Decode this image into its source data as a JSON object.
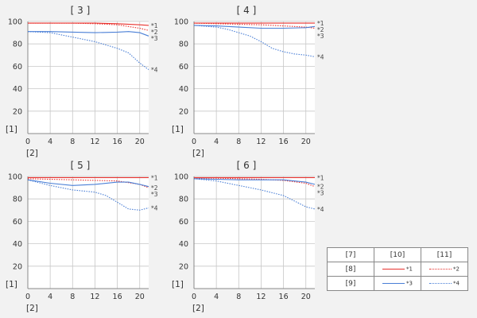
{
  "chart_data": [
    {
      "type": "line",
      "title": "[ 3 ]",
      "ylabel": "[1]",
      "xlabel": "[2]",
      "xlim": [
        0,
        21.6
      ],
      "ylim": [
        0,
        100
      ],
      "xticks": [
        0,
        4,
        8,
        12,
        16,
        20
      ],
      "yticks": [
        20,
        40,
        60,
        80,
        100
      ],
      "series": [
        {
          "name": "*1",
          "style": "solid",
          "color": "#e8322e",
          "x": [
            0,
            4,
            8,
            12,
            16,
            20,
            21.6
          ],
          "y": [
            98.5,
            98.5,
            98.5,
            98.5,
            98,
            97,
            96.5
          ]
        },
        {
          "name": "*2",
          "style": "dotted",
          "color": "#e8322e",
          "x": [
            0,
            4,
            8,
            12,
            16,
            20,
            21.6
          ],
          "y": [
            98.5,
            98.5,
            98.5,
            98,
            97,
            94,
            92
          ]
        },
        {
          "name": "*3",
          "style": "solid",
          "color": "#4a7fd6",
          "x": [
            0,
            4,
            8,
            12,
            16,
            18,
            20,
            21.6
          ],
          "y": [
            91,
            91,
            90.5,
            90,
            90.5,
            91,
            90,
            87
          ]
        },
        {
          "name": "*4",
          "style": "dotted",
          "color": "#4a7fd6",
          "x": [
            0,
            4,
            8,
            12,
            16,
            18,
            20,
            21.6
          ],
          "y": [
            91,
            90,
            86,
            82,
            76,
            72,
            63,
            57
          ]
        }
      ]
    },
    {
      "type": "line",
      "title": "[ 4 ]",
      "ylabel": "[1]",
      "xlabel": "[2]",
      "xlim": [
        0,
        21.6
      ],
      "ylim": [
        0,
        100
      ],
      "xticks": [
        0,
        4,
        8,
        12,
        16,
        20
      ],
      "yticks": [
        20,
        40,
        60,
        80,
        100
      ],
      "series": [
        {
          "name": "*1",
          "style": "solid",
          "color": "#e8322e",
          "x": [
            0,
            4,
            8,
            12,
            16,
            20,
            21.6
          ],
          "y": [
            98.5,
            98.5,
            98.5,
            98.5,
            98.5,
            98.5,
            98.5
          ]
        },
        {
          "name": "*2",
          "style": "dotted",
          "color": "#e8322e",
          "x": [
            0,
            4,
            8,
            12,
            16,
            20,
            21.6
          ],
          "y": [
            98.5,
            98,
            97.5,
            97,
            96,
            95,
            94
          ]
        },
        {
          "name": "*3",
          "style": "solid",
          "color": "#4a7fd6",
          "x": [
            0,
            4,
            8,
            12,
            16,
            20,
            21.6
          ],
          "y": [
            96.5,
            96,
            95,
            94,
            94,
            94.5,
            95.5
          ]
        },
        {
          "name": "*4",
          "style": "dotted",
          "color": "#4a7fd6",
          "x": [
            0,
            4,
            6,
            8,
            10,
            12,
            14,
            16,
            18,
            20,
            21.6
          ],
          "y": [
            96.5,
            95,
            93,
            90,
            87,
            82,
            76,
            73,
            71,
            70,
            68.5
          ]
        }
      ]
    },
    {
      "type": "line",
      "title": "[ 5 ]",
      "ylabel": "[1]",
      "xlabel": "[2]",
      "xlim": [
        0,
        21.6
      ],
      "ylim": [
        0,
        100
      ],
      "xticks": [
        0,
        4,
        8,
        12,
        16,
        20
      ],
      "yticks": [
        20,
        40,
        60,
        80,
        100
      ],
      "series": [
        {
          "name": "*1",
          "style": "solid",
          "color": "#e8322e",
          "x": [
            0,
            4,
            8,
            12,
            16,
            20,
            21.6
          ],
          "y": [
            99,
            99,
            99,
            99,
            99,
            99,
            99
          ]
        },
        {
          "name": "*2",
          "style": "dotted",
          "color": "#e8322e",
          "x": [
            0,
            4,
            8,
            12,
            16,
            20,
            21.6
          ],
          "y": [
            98,
            97.5,
            97,
            96.5,
            96,
            93,
            90
          ]
        },
        {
          "name": "*3",
          "style": "solid",
          "color": "#4a7fd6",
          "x": [
            0,
            4,
            8,
            12,
            16,
            18,
            20,
            21.6
          ],
          "y": [
            97,
            94,
            92,
            93,
            95,
            95,
            93,
            91
          ]
        },
        {
          "name": "*4",
          "style": "dotted",
          "color": "#4a7fd6",
          "x": [
            0,
            4,
            8,
            12,
            14,
            16,
            18,
            20,
            21.6
          ],
          "y": [
            97,
            92,
            88,
            86,
            83,
            77,
            71,
            70,
            72
          ]
        }
      ]
    },
    {
      "type": "line",
      "title": "[ 6 ]",
      "ylabel": "[1]",
      "xlabel": "[2]",
      "xlim": [
        0,
        21.6
      ],
      "ylim": [
        0,
        100
      ],
      "xticks": [
        0,
        4,
        8,
        12,
        16,
        20
      ],
      "yticks": [
        20,
        40,
        60,
        80,
        100
      ],
      "series": [
        {
          "name": "*1",
          "style": "solid",
          "color": "#e8322e",
          "x": [
            0,
            4,
            8,
            12,
            16,
            20,
            21.6
          ],
          "y": [
            99,
            99,
            99,
            99,
            99,
            99,
            99
          ]
        },
        {
          "name": "*2",
          "style": "dotted",
          "color": "#e8322e",
          "x": [
            0,
            4,
            8,
            12,
            16,
            20,
            21.6
          ],
          "y": [
            98.5,
            98.5,
            98,
            97.5,
            96.5,
            94,
            91
          ]
        },
        {
          "name": "*3",
          "style": "solid",
          "color": "#4a7fd6",
          "x": [
            0,
            4,
            8,
            12,
            16,
            20,
            21.6
          ],
          "y": [
            98,
            97.5,
            97,
            97,
            97,
            95,
            93
          ]
        },
        {
          "name": "*4",
          "style": "dotted",
          "color": "#4a7fd6",
          "x": [
            0,
            4,
            8,
            12,
            16,
            18,
            20,
            21.6
          ],
          "y": [
            98,
            96,
            92,
            88,
            83,
            78,
            73,
            71
          ]
        }
      ]
    }
  ],
  "legend": {
    "header_blank": "[7]",
    "col1_header": "[10]",
    "col2_header": "[11]",
    "row1_label": "[8]",
    "row2_label": "[9]",
    "r1c1": "*1",
    "r1c2": "*2",
    "r2c1": "*3",
    "r2c2": "*4"
  }
}
